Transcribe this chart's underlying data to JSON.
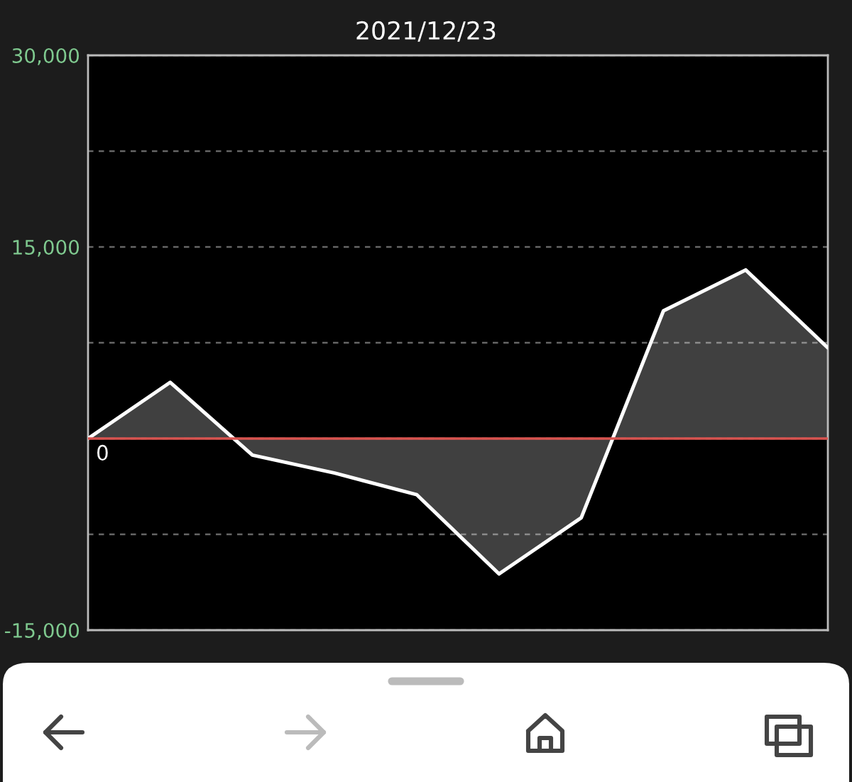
{
  "chart_data": {
    "type": "area",
    "title": "2021/12/23",
    "categories": [
      null,
      null,
      null,
      null,
      null,
      null,
      null,
      null,
      null,
      null
    ],
    "series": [
      {
        "color": "#ffffff",
        "values": [
          0,
          4400,
          -1300,
          -2700,
          -4400,
          -10600,
          -6200,
          10000,
          13200,
          7100
        ]
      }
    ],
    "ylim": [
      -15000,
      30000
    ],
    "yticks": [
      {
        "value": -15000,
        "label": "-15,000"
      },
      {
        "value": -7500,
        "label": null
      },
      {
        "value": 0,
        "label": null
      },
      {
        "value": 7500,
        "label": null
      },
      {
        "value": 15000,
        "label": "15,000"
      },
      {
        "value": 22500,
        "label": null
      },
      {
        "value": 30000,
        "label": "30,000"
      }
    ],
    "ref_lines": [
      {
        "axis": "y",
        "value": 0,
        "label": "0",
        "color": "#d9534f"
      }
    ],
    "grid": "y",
    "tick_labels": "y",
    "line_style": "solid",
    "marker": "none"
  }
}
